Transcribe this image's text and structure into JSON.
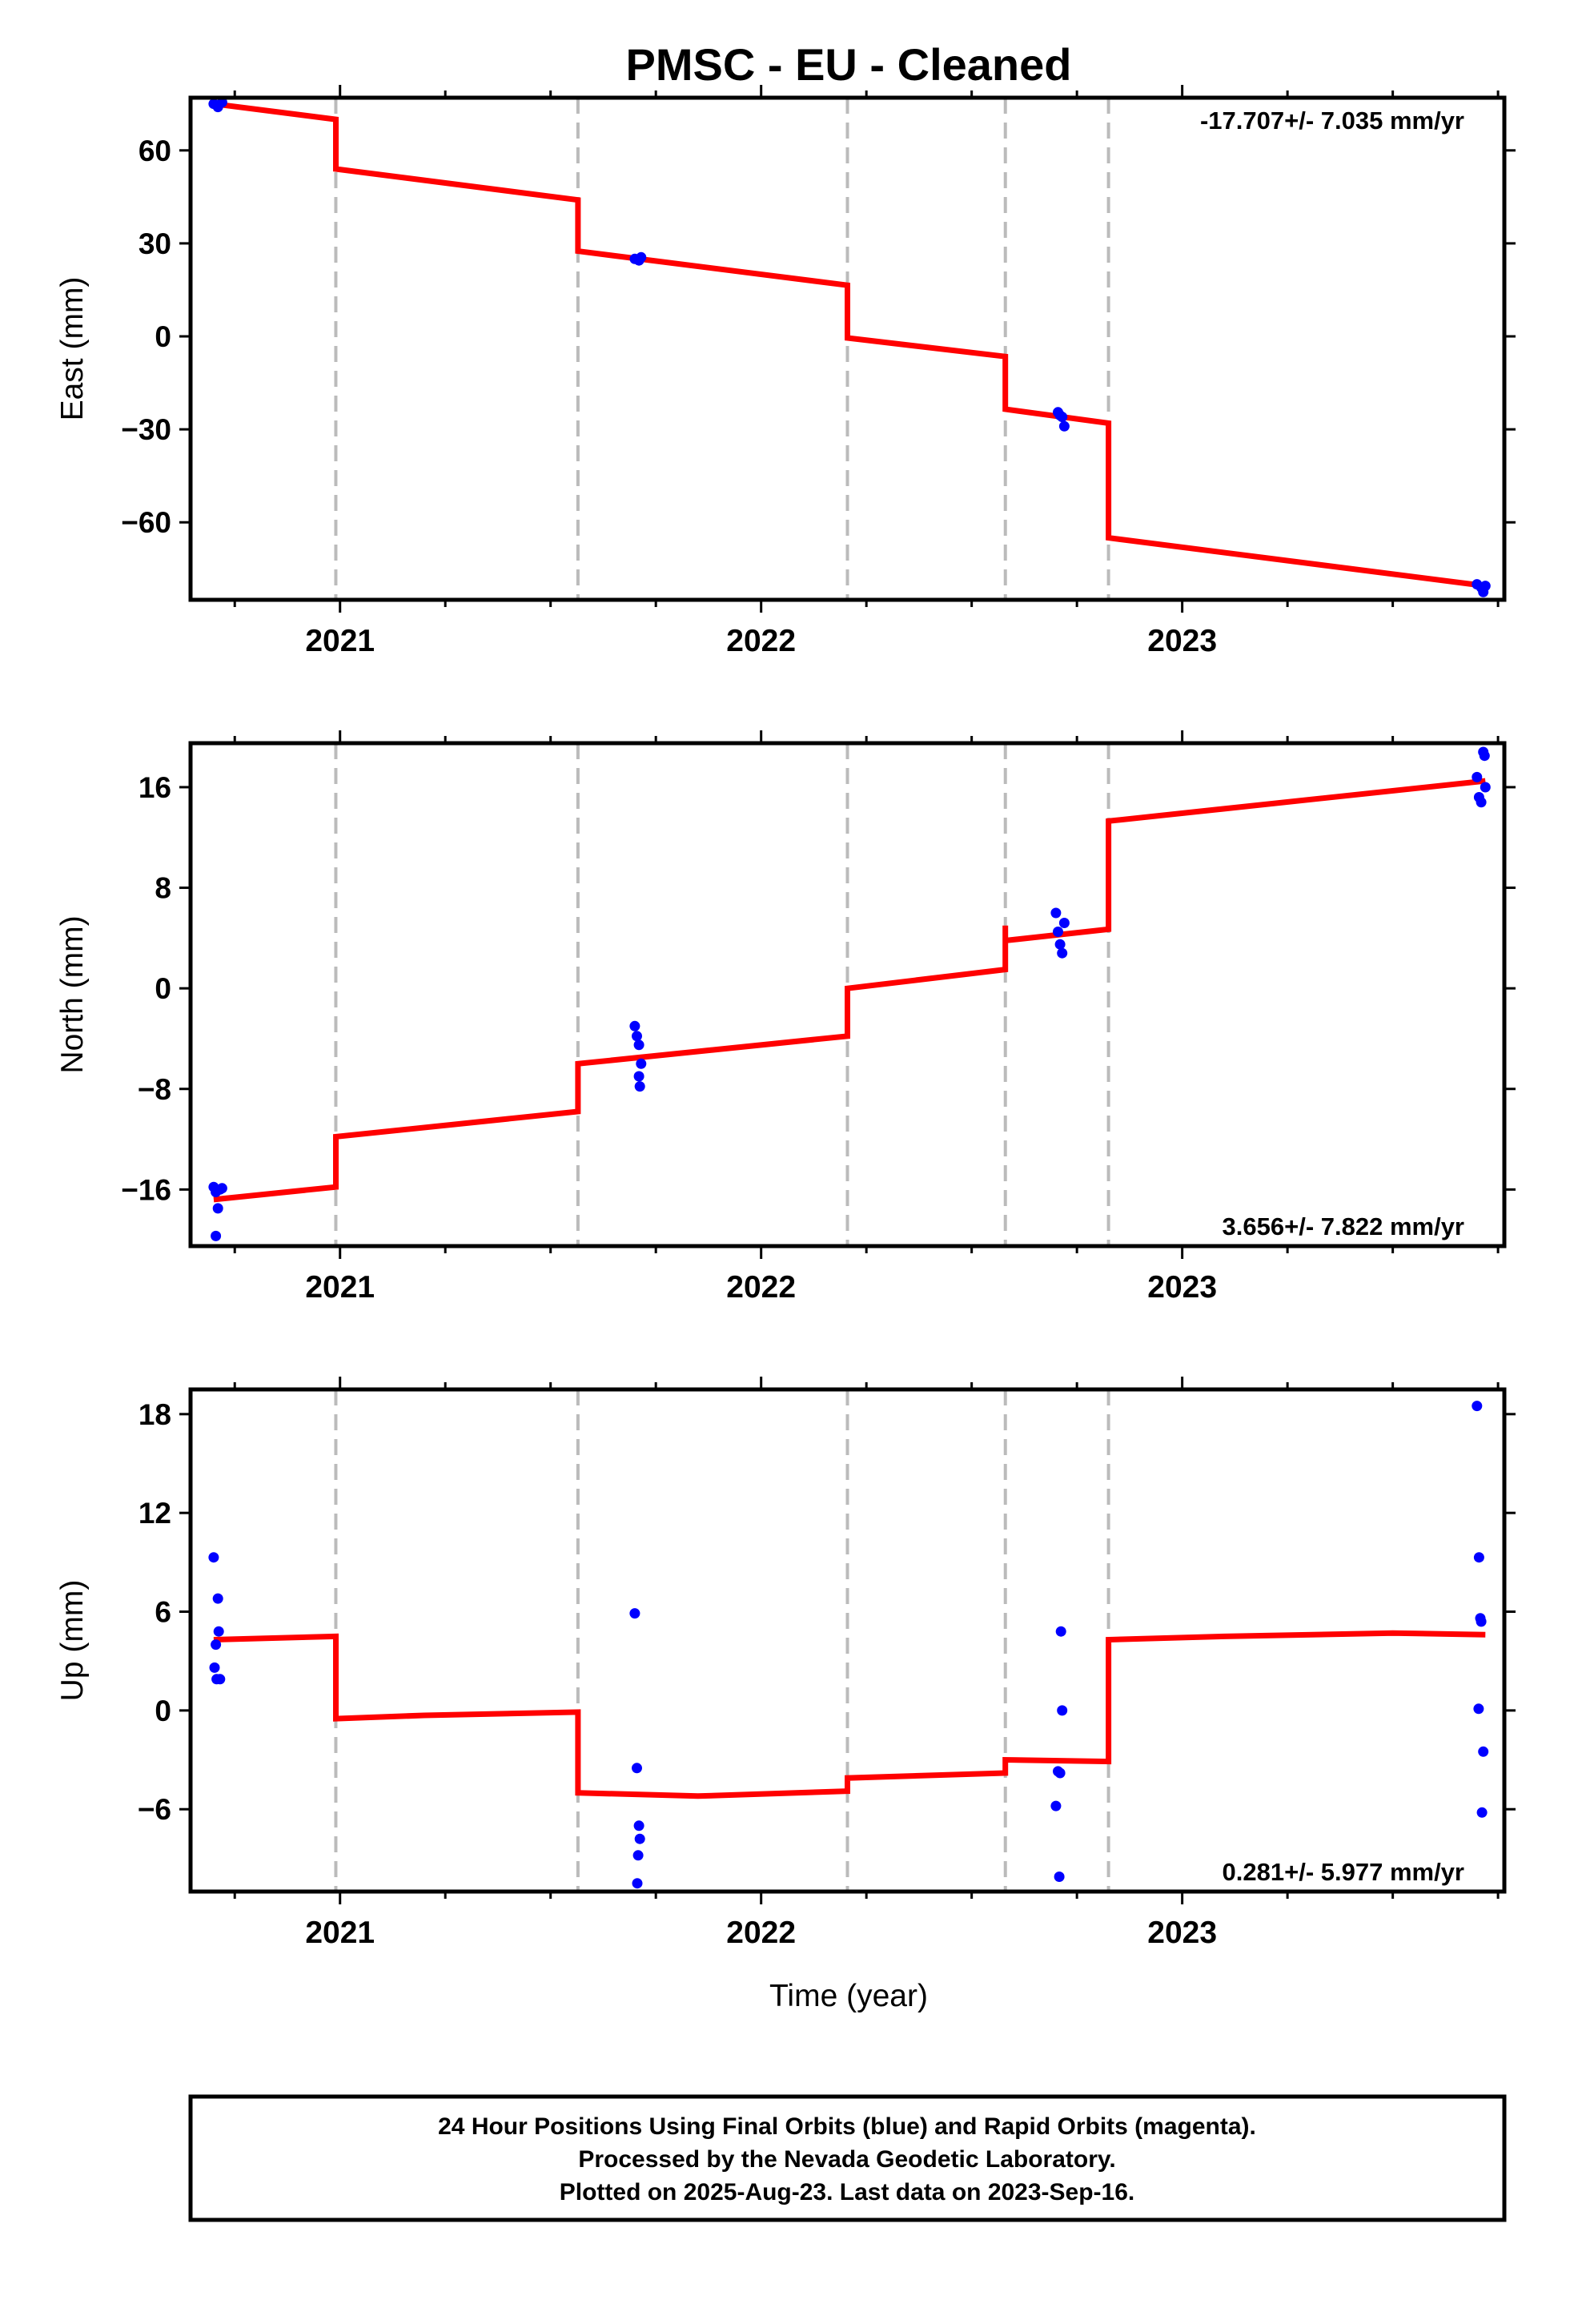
{
  "chart_data": {
    "type": "scatter",
    "title": "PMSC  - EU - Cleaned",
    "xlabel": "Time (year)",
    "x_ticks": [
      2021,
      2022,
      2023
    ],
    "xlim": [
      2020.645,
      2023.765
    ],
    "step_epochs": [
      2020.99,
      2021.565,
      2022.205,
      2022.58,
      2022.825
    ],
    "colors": {
      "data": "#0000ff",
      "model": "#ff0000",
      "steps": "#bbbbbb"
    },
    "panels": [
      {
        "ylabel": "East (mm)",
        "rate": "-17.707+/- 7.035 mm/yr",
        "rate_position": "top-right",
        "ylim": [
          -85,
          77
        ],
        "yticks": [
          -60,
          -30,
          0,
          30,
          60
        ],
        "points": [
          [
            2020.7,
            75.0
          ],
          [
            2020.71,
            74.0
          ],
          [
            2020.72,
            75.5
          ],
          [
            2021.7,
            25.0
          ],
          [
            2021.71,
            24.5
          ],
          [
            2021.715,
            25.5
          ],
          [
            2022.705,
            -24.5
          ],
          [
            2022.71,
            -25.5
          ],
          [
            2022.715,
            -26.0
          ],
          [
            2022.72,
            -29.0
          ],
          [
            2023.7,
            -80.0
          ],
          [
            2023.71,
            -81.0
          ],
          [
            2023.715,
            -82.5
          ],
          [
            2023.72,
            -80.5
          ]
        ],
        "model": [
          [
            2020.7,
            75.0
          ],
          [
            2020.99,
            70.0
          ],
          [
            2020.99,
            54.0
          ],
          [
            2021.565,
            44.0
          ],
          [
            2021.565,
            27.5
          ],
          [
            2022.205,
            16.5
          ],
          [
            2022.205,
            -0.5
          ],
          [
            2022.58,
            -6.5
          ],
          [
            2022.58,
            -23.5
          ],
          [
            2022.825,
            -28.0
          ],
          [
            2022.825,
            -65.0
          ],
          [
            2023.72,
            -80.5
          ]
        ]
      },
      {
        "ylabel": "North (mm)",
        "rate": "3.656+/- 7.822 mm/yr",
        "rate_position": "bottom-right",
        "ylim": [
          -20.5,
          19.5
        ],
        "yticks": [
          -16,
          -8,
          0,
          8,
          16
        ],
        "points": [
          [
            2020.7,
            -15.8
          ],
          [
            2020.705,
            -16.2
          ],
          [
            2020.71,
            -17.5
          ],
          [
            2020.715,
            -16.0
          ],
          [
            2020.72,
            -15.9
          ],
          [
            2020.705,
            -19.7
          ],
          [
            2021.7,
            -3.0
          ],
          [
            2021.705,
            -3.8
          ],
          [
            2021.71,
            -4.5
          ],
          [
            2021.715,
            -6.0
          ],
          [
            2021.71,
            -7.0
          ],
          [
            2021.712,
            -7.8
          ],
          [
            2022.7,
            6.0
          ],
          [
            2022.705,
            4.5
          ],
          [
            2022.71,
            3.5
          ],
          [
            2022.715,
            2.8
          ],
          [
            2022.72,
            5.2
          ],
          [
            2023.7,
            16.8
          ],
          [
            2023.705,
            15.2
          ],
          [
            2023.71,
            14.8
          ],
          [
            2023.715,
            18.8
          ],
          [
            2023.718,
            18.5
          ],
          [
            2023.72,
            16.0
          ]
        ],
        "model": [
          [
            2020.7,
            -16.8
          ],
          [
            2020.99,
            -15.8
          ],
          [
            2020.99,
            -11.8
          ],
          [
            2021.565,
            -9.8
          ],
          [
            2021.565,
            -6.0
          ],
          [
            2022.205,
            -3.8
          ],
          [
            2022.205,
            0.0
          ],
          [
            2022.58,
            1.5
          ],
          [
            2022.58,
            5.0
          ],
          [
            2022.58,
            3.8
          ],
          [
            2022.825,
            4.7
          ],
          [
            2022.825,
            13.3
          ],
          [
            2023.72,
            16.5
          ]
        ]
      },
      {
        "ylabel": "Up (mm)",
        "rate": "0.281+/- 5.977 mm/yr",
        "rate_position": "bottom-right",
        "ylim": [
          -11,
          19.5
        ],
        "yticks": [
          -6,
          0,
          6,
          12,
          18
        ],
        "points": [
          [
            2020.7,
            9.3
          ],
          [
            2020.705,
            4.0
          ],
          [
            2020.71,
            6.8
          ],
          [
            2020.712,
            4.8
          ],
          [
            2020.702,
            2.6
          ],
          [
            2020.707,
            1.9
          ],
          [
            2020.715,
            1.9
          ],
          [
            2021.7,
            5.9
          ],
          [
            2021.705,
            -3.5
          ],
          [
            2021.71,
            -7.0
          ],
          [
            2021.712,
            -7.8
          ],
          [
            2021.708,
            -8.8
          ],
          [
            2021.706,
            -10.5
          ],
          [
            2022.7,
            -5.8
          ],
          [
            2022.705,
            -3.7
          ],
          [
            2022.71,
            -3.8
          ],
          [
            2022.712,
            4.8
          ],
          [
            2022.715,
            0.0
          ],
          [
            2022.708,
            -10.1
          ],
          [
            2023.7,
            18.5
          ],
          [
            2023.705,
            9.3
          ],
          [
            2023.708,
            5.6
          ],
          [
            2023.71,
            5.4
          ],
          [
            2023.704,
            0.1
          ],
          [
            2023.715,
            -2.5
          ],
          [
            2023.712,
            -6.2
          ]
        ],
        "model": [
          [
            2020.7,
            4.3
          ],
          [
            2020.99,
            4.5
          ],
          [
            2020.99,
            -0.5
          ],
          [
            2021.2,
            -0.3
          ],
          [
            2021.565,
            -0.1
          ],
          [
            2021.565,
            -5.0
          ],
          [
            2021.85,
            -5.2
          ],
          [
            2022.205,
            -4.9
          ],
          [
            2022.205,
            -4.1
          ],
          [
            2022.58,
            -3.8
          ],
          [
            2022.58,
            -3.0
          ],
          [
            2022.825,
            -3.1
          ],
          [
            2022.825,
            4.3
          ],
          [
            2023.1,
            4.5
          ],
          [
            2023.5,
            4.7
          ],
          [
            2023.72,
            4.6
          ]
        ]
      }
    ]
  },
  "footer": {
    "line1": "24 Hour Positions Using Final Orbits (blue) and Rapid Orbits (magenta).",
    "line2": "Processed by the Nevada Geodetic Laboratory.",
    "line3": "Plotted on 2025-Aug-23. Last data on 2023-Sep-16."
  }
}
